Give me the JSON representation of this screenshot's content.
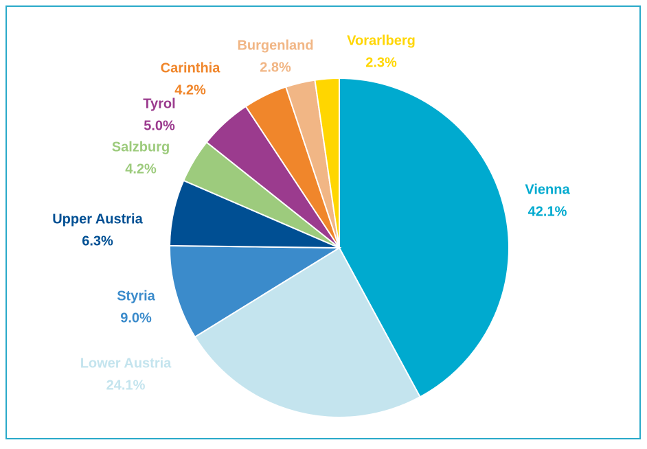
{
  "chart_data": {
    "type": "pie",
    "categories": [
      "Vienna",
      "Lower Austria",
      "Styria",
      "Upper Austria",
      "Salzburg",
      "Tyrol",
      "Carinthia",
      "Burgenland",
      "Vorarlberg"
    ],
    "values": [
      42.1,
      24.1,
      9.0,
      6.3,
      4.2,
      5.0,
      4.2,
      2.8,
      2.3
    ],
    "value_labels": [
      "42.1%",
      "24.1%",
      "9.0%",
      "6.3%",
      "4.2%",
      "5.0%",
      "4.2%",
      "2.8%",
      "2.3%"
    ],
    "colors": [
      "#00aacf",
      "#c4e4ee",
      "#3b8bcb",
      "#004f93",
      "#9dcb7d",
      "#9b3b8e",
      "#f0862b",
      "#f1b685",
      "#ffd600"
    ]
  }
}
